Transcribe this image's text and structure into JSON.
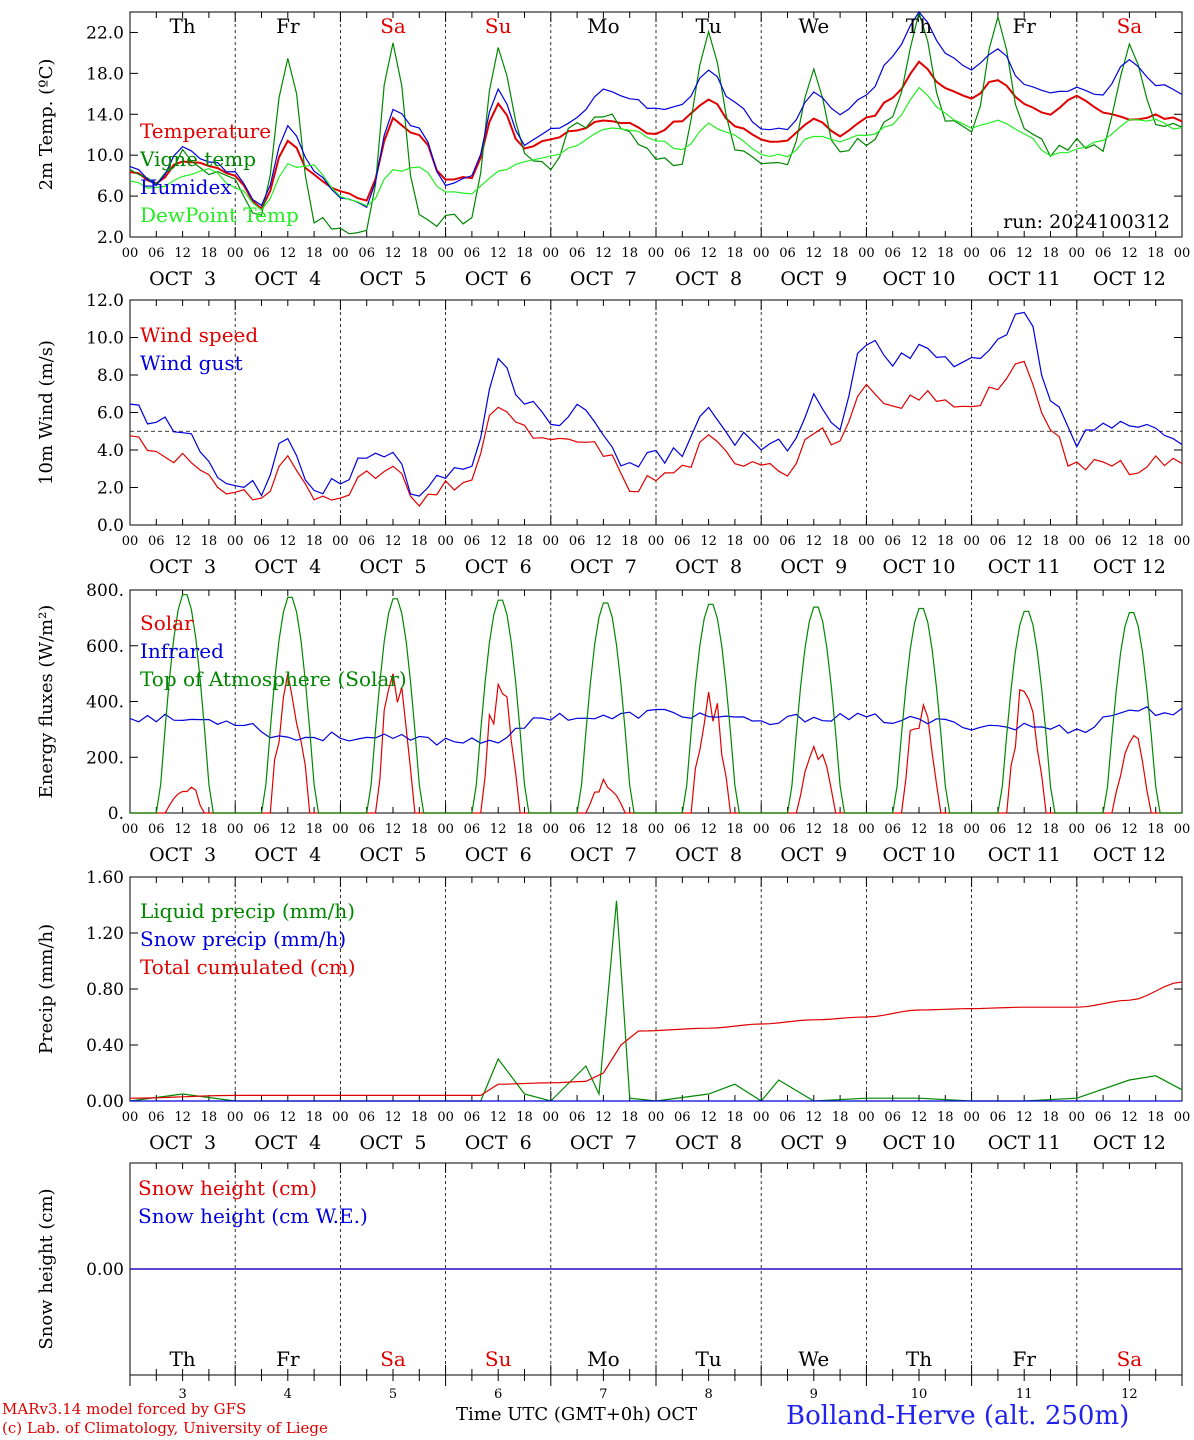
{
  "days": {
    "weekday_labels": [
      "Th",
      "Fr",
      "Sa",
      "Su",
      "Mo",
      "Tu",
      "We",
      "Th",
      "Fr",
      "Sa"
    ],
    "weekend_color": "#e00000",
    "weekday_color": "#000000",
    "date_labels": [
      "OCT  3",
      "OCT  4",
      "OCT  5",
      "OCT  6",
      "OCT  7",
      "OCT  8",
      "OCT  9",
      "OCT 10",
      "OCT 11",
      "OCT 12"
    ],
    "day_numbers": [
      "3",
      "4",
      "5",
      "6",
      "7",
      "8",
      "9",
      "10",
      "11",
      "12"
    ],
    "hour_ticks": [
      "00",
      "06",
      "12",
      "18"
    ],
    "final_tick": "00"
  },
  "footer": {
    "model_line": "MARv3.14 model forced by GFS",
    "copyright_line": "(c) Lab. of Climatology, University of Liege",
    "xlabel": "Time UTC (GMT+0h)",
    "month": "OCT",
    "station": "Bolland-Herve (alt. 250m)"
  },
  "chart_data": [
    {
      "type": "line",
      "ylabel": "2m Temp. (ºC)",
      "ylim": [
        2.0,
        24.0
      ],
      "yticks": [
        "2.0",
        "6.0",
        "10.0",
        "14.0",
        "18.0",
        "22.0"
      ],
      "annotation": "run: 2024100312",
      "x_unit": "hours since OCT 3 00 UTC",
      "series": [
        {
          "name": "Temperature",
          "color": "#e00000",
          "x": [
            0,
            6,
            12,
            18,
            24,
            30,
            36,
            42,
            48,
            54,
            60,
            66,
            72,
            78,
            84,
            90,
            96,
            102,
            108,
            114,
            120,
            126,
            132,
            138,
            144,
            150,
            156,
            162,
            168,
            174,
            180,
            186,
            192,
            198,
            204,
            210,
            216,
            222,
            228,
            234,
            240
          ],
          "values": [
            8.3,
            7.4,
            9.5,
            9.0,
            7.8,
            4.8,
            11.5,
            8.0,
            6.5,
            5.5,
            13.5,
            12.0,
            7.5,
            7.8,
            15.0,
            10.5,
            11.5,
            12.5,
            13.5,
            13.0,
            12.0,
            13.5,
            15.5,
            13.0,
            11.5,
            11.5,
            13.5,
            12.0,
            13.5,
            15.5,
            19.0,
            16.5,
            15.5,
            17.5,
            15.0,
            14.0,
            16.0,
            14.0,
            13.5,
            13.8,
            13.5
          ]
        },
        {
          "name": "Vigne temp",
          "color": "#008800",
          "x": [
            0,
            6,
            12,
            18,
            24,
            30,
            36,
            42,
            48,
            54,
            60,
            66,
            72,
            78,
            84,
            90,
            96,
            102,
            108,
            114,
            120,
            126,
            132,
            138,
            144,
            150,
            156,
            162,
            168,
            174,
            180,
            186,
            192,
            198,
            204,
            210,
            216,
            222,
            228,
            234,
            240
          ],
          "values": [
            8.0,
            7.0,
            10.0,
            8.5,
            7.0,
            4.0,
            19.5,
            4.0,
            2.5,
            2.0,
            21.5,
            4.0,
            3.5,
            4.0,
            20.5,
            10.0,
            9.0,
            13.0,
            14.0,
            12.0,
            10.0,
            9.5,
            22.5,
            10.5,
            9.0,
            8.5,
            18.0,
            10.0,
            11.5,
            14.0,
            23.5,
            14.0,
            12.5,
            24.0,
            12.0,
            10.5,
            11.0,
            11.0,
            20.5,
            13.0,
            12.5
          ]
        },
        {
          "name": "Humidex",
          "color": "#0000dd",
          "x": [
            0,
            6,
            12,
            18,
            24,
            30,
            36,
            42,
            48,
            54,
            60,
            66,
            72,
            78,
            84,
            90,
            96,
            102,
            108,
            114,
            120,
            126,
            132,
            138,
            144,
            150,
            156,
            162,
            168,
            174,
            180,
            186,
            192,
            198,
            204,
            210,
            216,
            222,
            228,
            234,
            240
          ],
          "values": [
            9.0,
            7.2,
            10.8,
            9.5,
            8.2,
            5.0,
            12.8,
            8.5,
            6.0,
            5.0,
            14.5,
            12.5,
            7.2,
            8.0,
            16.5,
            11.0,
            12.5,
            13.5,
            16.5,
            15.5,
            14.5,
            15.0,
            18.5,
            15.0,
            12.5,
            12.5,
            16.0,
            14.0,
            16.0,
            19.5,
            24.0,
            20.0,
            18.5,
            20.5,
            17.0,
            16.0,
            16.5,
            16.0,
            19.5,
            17.0,
            16.0
          ]
        },
        {
          "name": "DewPoint Temp",
          "color": "#22ee22",
          "x": [
            0,
            6,
            12,
            18,
            24,
            30,
            36,
            42,
            48,
            54,
            60,
            66,
            72,
            78,
            84,
            90,
            96,
            102,
            108,
            114,
            120,
            126,
            132,
            138,
            144,
            150,
            156,
            162,
            168,
            174,
            180,
            186,
            192,
            198,
            204,
            210,
            216,
            222,
            228,
            234,
            240
          ],
          "values": [
            7.5,
            6.8,
            8.0,
            8.5,
            7.0,
            4.5,
            9.0,
            9.0,
            6.0,
            5.0,
            8.5,
            9.0,
            6.5,
            6.2,
            8.5,
            9.5,
            10.0,
            11.0,
            12.5,
            12.5,
            11.5,
            10.5,
            13.0,
            12.0,
            10.0,
            10.0,
            12.0,
            11.5,
            12.0,
            13.0,
            16.5,
            14.0,
            12.5,
            13.5,
            12.0,
            10.0,
            10.5,
            11.5,
            13.5,
            13.5,
            12.5
          ]
        }
      ]
    },
    {
      "type": "line",
      "ylabel": "10m Wind (m/s)",
      "ylim": [
        0.0,
        12.0
      ],
      "yticks": [
        "0.0",
        "2.0",
        "4.0",
        "6.0",
        "8.0",
        "10.0",
        "12.0"
      ],
      "reference_line": 5.0,
      "series": [
        {
          "name": "Wind speed",
          "color": "#e00000",
          "x": [
            0,
            6,
            12,
            18,
            24,
            30,
            36,
            42,
            48,
            54,
            60,
            66,
            72,
            78,
            84,
            90,
            96,
            102,
            108,
            114,
            120,
            126,
            132,
            138,
            144,
            150,
            156,
            162,
            168,
            174,
            180,
            186,
            192,
            198,
            204,
            210,
            216,
            222,
            228,
            234,
            240
          ],
          "values": [
            4.8,
            4.0,
            3.6,
            2.3,
            1.8,
            1.4,
            3.5,
            1.4,
            1.8,
            2.5,
            3.0,
            1.0,
            2.0,
            2.5,
            6.5,
            5.0,
            4.3,
            4.5,
            4.0,
            2.0,
            2.5,
            3.0,
            4.5,
            3.5,
            3.5,
            3.0,
            5.0,
            4.5,
            7.2,
            6.0,
            7.0,
            6.5,
            6.5,
            7.5,
            8.5,
            5.0,
            3.0,
            3.5,
            3.0,
            3.5,
            3.2
          ]
        },
        {
          "name": "Wind gust",
          "color": "#0000dd",
          "x": [
            0,
            6,
            12,
            18,
            24,
            30,
            36,
            42,
            48,
            54,
            60,
            66,
            72,
            78,
            84,
            90,
            96,
            102,
            108,
            114,
            120,
            126,
            132,
            138,
            144,
            150,
            156,
            162,
            168,
            174,
            180,
            186,
            192,
            198,
            204,
            210,
            216,
            222,
            228,
            234,
            240
          ],
          "values": [
            6.3,
            5.5,
            5.0,
            3.0,
            2.3,
            2.0,
            4.5,
            2.0,
            2.0,
            4.0,
            3.5,
            1.5,
            2.5,
            3.5,
            8.5,
            6.8,
            5.5,
            6.0,
            5.0,
            3.0,
            3.5,
            4.0,
            6.0,
            4.5,
            4.5,
            4.0,
            6.5,
            5.5,
            10.0,
            8.5,
            9.5,
            8.5,
            8.5,
            9.5,
            11.5,
            6.5,
            4.5,
            5.5,
            5.0,
            5.0,
            4.3
          ]
        }
      ]
    },
    {
      "type": "line",
      "ylabel": "Energy fluxes (W/m²)",
      "ylim": [
        0,
        800
      ],
      "yticks": [
        "0.",
        "200.",
        "400.",
        "600.",
        "800."
      ],
      "series": [
        {
          "name": "Solar",
          "color": "#e00000",
          "peaks": [
            130,
            560,
            580,
            550,
            130,
            470,
            280,
            470,
            520,
            330
          ]
        },
        {
          "name": "Infrared",
          "color": "#0000dd",
          "x": [
            0,
            12,
            24,
            36,
            48,
            60,
            72,
            84,
            96,
            108,
            120,
            132,
            144,
            156,
            168,
            180,
            192,
            204,
            216,
            228,
            240
          ],
          "values": [
            345,
            335,
            330,
            270,
            275,
            265,
            260,
            265,
            350,
            340,
            360,
            350,
            320,
            345,
            340,
            330,
            315,
            310,
            300,
            370,
            360
          ]
        },
        {
          "name": "Top of Atmosphere (Solar)",
          "color": "#008800",
          "peaks": [
            790,
            780,
            775,
            770,
            760,
            755,
            745,
            740,
            730,
            725
          ]
        }
      ]
    },
    {
      "type": "line",
      "ylabel": "Precip (mm/h)",
      "ylim": [
        0.0,
        1.6
      ],
      "yticks": [
        "0.00",
        "0.40",
        "0.80",
        "1.20",
        "1.60"
      ],
      "series": [
        {
          "name": "Liquid precip (mm/h)",
          "color": "#008800",
          "x": [
            0,
            12,
            24,
            36,
            48,
            60,
            72,
            80,
            84,
            90,
            96,
            104,
            107,
            111,
            114,
            120,
            132,
            138,
            144,
            148,
            156,
            168,
            180,
            192,
            204,
            216,
            228,
            234,
            240
          ],
          "values": [
            0.0,
            0.05,
            0.0,
            0.0,
            0.0,
            0.0,
            0.0,
            0.0,
            0.3,
            0.05,
            0.0,
            0.25,
            0.05,
            1.43,
            0.02,
            0.0,
            0.05,
            0.12,
            0.0,
            0.15,
            0.0,
            0.02,
            0.02,
            0.0,
            0.0,
            0.02,
            0.15,
            0.18,
            0.08
          ]
        },
        {
          "name": "Snow precip (mm/h)",
          "color": "#0000dd",
          "x": [
            0,
            240
          ],
          "values": [
            0.0,
            0.0
          ]
        },
        {
          "name": "Total cumulated (cm)",
          "color": "#e00000",
          "x": [
            0,
            24,
            48,
            72,
            80,
            84,
            96,
            104,
            108,
            112,
            116,
            132,
            144,
            156,
            168,
            180,
            192,
            204,
            216,
            228,
            240
          ],
          "values": [
            0.02,
            0.04,
            0.04,
            0.04,
            0.04,
            0.12,
            0.13,
            0.14,
            0.2,
            0.4,
            0.5,
            0.52,
            0.55,
            0.58,
            0.6,
            0.65,
            0.66,
            0.67,
            0.67,
            0.72,
            0.85
          ]
        }
      ]
    },
    {
      "type": "line",
      "ylabel": "Snow height (cm)",
      "yticks": [
        "0.00"
      ],
      "series": [
        {
          "name": "Snow height (cm)",
          "color": "#e00000",
          "x": [
            0,
            240
          ],
          "values": [
            0.0,
            0.0
          ]
        },
        {
          "name": "Snow height (cm W.E.)",
          "color": "#0000dd",
          "x": [
            0,
            240
          ],
          "values": [
            0.0,
            0.0
          ]
        }
      ]
    }
  ]
}
